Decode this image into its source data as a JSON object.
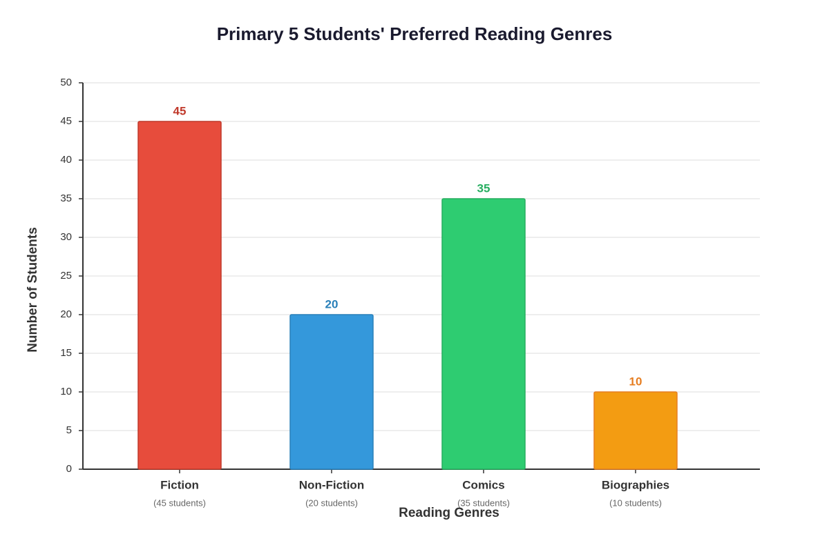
{
  "chart_data": {
    "type": "bar",
    "title": "Primary 5 Students' Preferred Reading Genres",
    "x_label": "Reading Genres",
    "y_label": "Number of Students",
    "categories": [
      "Fiction",
      "Non-Fiction",
      "Comics",
      "Biographies"
    ],
    "category_notes": [
      "(45 students)",
      "(20 students)",
      "(35 students)",
      "(10 students)"
    ],
    "values": [
      45,
      20,
      35,
      10
    ],
    "colors": [
      "#e74c3c",
      "#3498db",
      "#2ecc71",
      "#f39c12"
    ],
    "label_colors": [
      "#c0392b",
      "#2980b9",
      "#27ae60",
      "#e67e22"
    ],
    "ylim": [
      0,
      50
    ],
    "yticks": [
      0,
      5,
      10,
      15,
      20,
      25,
      30,
      35,
      40,
      45,
      50
    ],
    "grid": true
  }
}
